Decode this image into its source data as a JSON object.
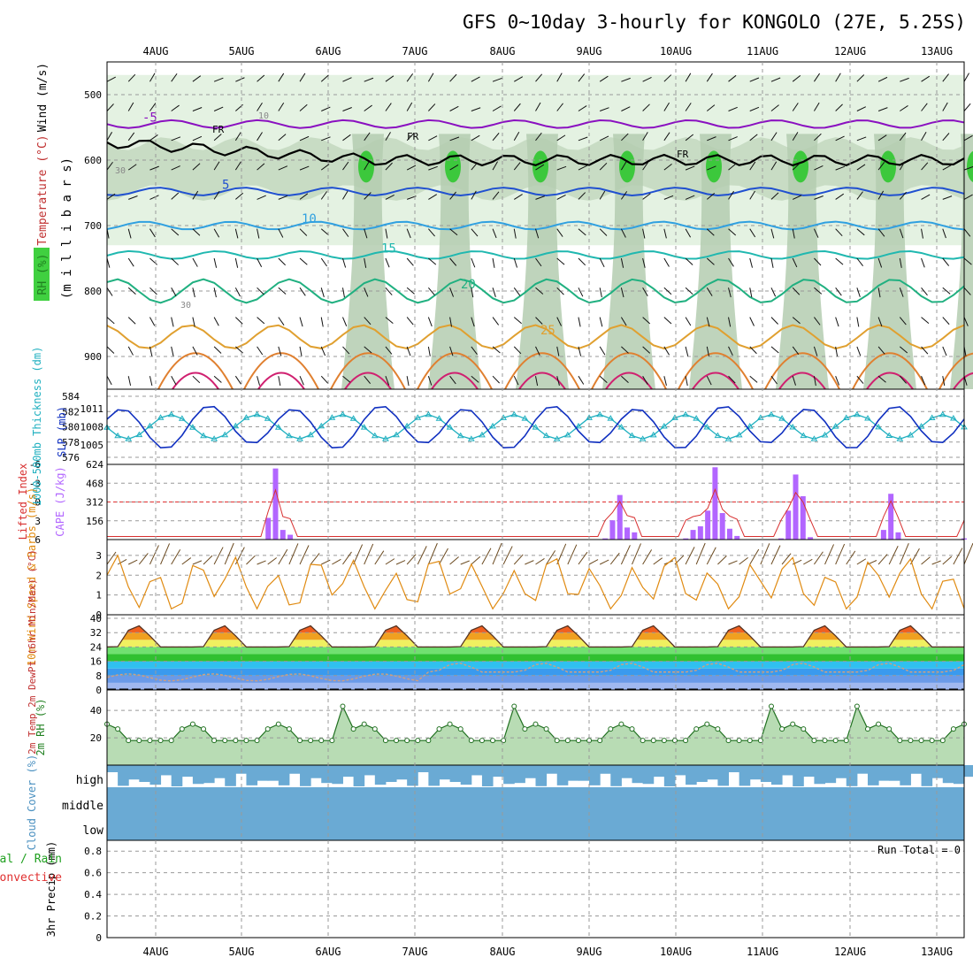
{
  "chart_data": {
    "type": "meteogram",
    "title": "GFS 0~10day 3-hourly for KONGOLO (27E, 5.25S)",
    "dates": [
      "4AUG",
      "5AUG",
      "6AUG",
      "7AUG",
      "8AUG",
      "9AUG",
      "10AUG",
      "11AUG",
      "12AUG",
      "13AUG"
    ],
    "colors": {
      "grid": "#999999",
      "green_fill": "#2e8b2e",
      "cape": "#b266ff",
      "li": "#d83030",
      "wind": "#e08a10",
      "slp": "#1030c0",
      "thick": "#20b0c0",
      "cloud": "#6aaad4"
    },
    "panels": [
      {
        "id": "upper",
        "labels": [
          {
            "text": "Wind (m/s)",
            "color": "#000000"
          },
          {
            "text": "Temperature (°C)",
            "color": "#c03030"
          },
          {
            "text": "RH (%)",
            "color": "#208020"
          },
          {
            "text": "(m i l l i b a r s)",
            "color": "#000000"
          }
        ],
        "yticks": [
          500,
          600,
          700,
          800,
          900
        ],
        "ylim": [
          950,
          450
        ],
        "temp_contours": [
          {
            "label": "-5",
            "color": "#8a10c0",
            "level": 545
          },
          {
            "label": "5",
            "color": "#2050d0",
            "level": 648
          },
          {
            "label": "10",
            "color": "#30a0e0",
            "level": 700
          },
          {
            "label": "15",
            "color": "#20b8b0",
            "level": 745
          },
          {
            "label": "20",
            "color": "#20b080",
            "level": 800
          },
          {
            "label": "25",
            "color": "#e0a030",
            "level": 870
          }
        ],
        "freezing_label": "FR",
        "rh_labels": [
          "10",
          "30"
        ]
      },
      {
        "id": "slp-thickness",
        "labels": [
          {
            "text": "1000-500mb Thickness (dm)",
            "color": "#20b0c0"
          },
          {
            "text": "SLP (mb)",
            "color": "#1030c0"
          }
        ],
        "left_ticks": [
          576,
          578,
          580,
          582,
          584
        ],
        "right_ticks": [
          1005,
          1008,
          1011
        ]
      },
      {
        "id": "cape-li",
        "labels": [
          {
            "text": "Lifted Index",
            "color": "#d83030"
          },
          {
            "text": "CAPE (J/kg)",
            "color": "#b266ff"
          }
        ],
        "left_ticks": [
          -6,
          -3,
          0,
          3,
          6
        ],
        "right_ticks": [
          156,
          312,
          468,
          624
        ],
        "cape_values": [
          0,
          0,
          0,
          0,
          0,
          0,
          0,
          0,
          0,
          0,
          0,
          0,
          0,
          0,
          0,
          0,
          0,
          0,
          0,
          0,
          0,
          0,
          180,
          590,
          80,
          40,
          0,
          0,
          0,
          0,
          0,
          0,
          0,
          0,
          0,
          0,
          0,
          0,
          0,
          0,
          0,
          0,
          0,
          0,
          0,
          0,
          0,
          0,
          0,
          0,
          0,
          0,
          0,
          0,
          0,
          0,
          0,
          0,
          0,
          0,
          0,
          0,
          0,
          0,
          0,
          0,
          0,
          0,
          10,
          160,
          370,
          100,
          60,
          0,
          0,
          0,
          0,
          0,
          0,
          10,
          80,
          110,
          240,
          600,
          220,
          90,
          30,
          0,
          0,
          0,
          0,
          0,
          10,
          240,
          540,
          360,
          20,
          0,
          0,
          0,
          0,
          0,
          0,
          0,
          0,
          0,
          80,
          380,
          60,
          0,
          0,
          0,
          0,
          0,
          0,
          0,
          0,
          10
        ]
      },
      {
        "id": "wind10m",
        "labels": [
          {
            "text": "10m Wind Speed & Barbs (m/s)",
            "color": "#e08a10"
          }
        ],
        "yticks": [
          0,
          1,
          2,
          3
        ]
      },
      {
        "id": "temp2m",
        "labels": [
          {
            "text": "2m Temp 2m DewPt (6hr Min/Max) (°C)",
            "color": "#c03030"
          }
        ],
        "yticks": [
          0,
          8,
          16,
          24,
          32,
          40
        ]
      },
      {
        "id": "rh2m",
        "labels": [
          {
            "text": "2m RH (%)",
            "color": "#208020"
          }
        ],
        "yticks": [
          20,
          40
        ]
      },
      {
        "id": "cloud",
        "labels": [
          {
            "text": "Cloud Cover (%)",
            "color": "#4a90c0"
          }
        ],
        "layers": [
          "high",
          "middle",
          "low"
        ]
      },
      {
        "id": "precip",
        "labels": [
          {
            "text": "3hr Precip (mm)",
            "color": "#000000"
          },
          {
            "text": "Total / Rain",
            "color": "#20a020"
          },
          {
            "text": "Convective",
            "color": "#e03030"
          }
        ],
        "yticks": [
          0,
          0.2,
          0.4,
          0.6,
          0.8
        ],
        "run_total": "Run Total = 0"
      }
    ]
  }
}
